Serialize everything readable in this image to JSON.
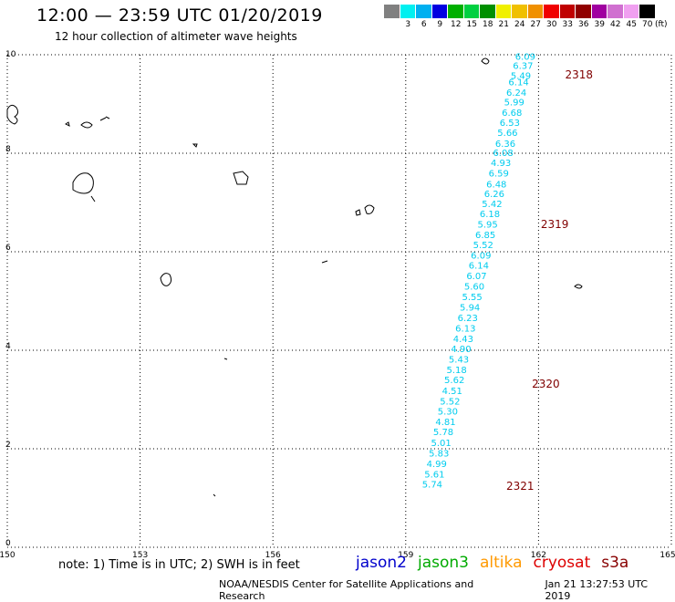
{
  "header": {
    "title": "12:00 — 23:59 UTC 01/20/2019",
    "subtitle": "12 hour collection of altimeter wave heights"
  },
  "legend": {
    "unit": "(ft)",
    "colors": [
      "#808080",
      "#00f0f0",
      "#00b0f0",
      "#0000e0",
      "#00b000",
      "#00d040",
      "#009000",
      "#f0f000",
      "#f0c000",
      "#f09000",
      "#f00000",
      "#c00000",
      "#900000",
      "#a000a0",
      "#d070d0",
      "#f0a0f0",
      "#000000"
    ],
    "labels": [
      "3",
      "6",
      "9",
      "12",
      "15",
      "18",
      "21",
      "24",
      "27",
      "30",
      "33",
      "36",
      "39",
      "42",
      "45",
      "70"
    ]
  },
  "map": {
    "lon_ticks": [
      "150",
      "153",
      "156",
      "159",
      "162",
      "165"
    ],
    "lat_ticks": [
      "0",
      "2",
      "4",
      "6",
      "8",
      "10"
    ],
    "lon_range": [
      150,
      165
    ],
    "lat_range": [
      0,
      10
    ],
    "track_color": "#00ccee",
    "orbit_color": "#800000",
    "swh": [
      {
        "lon": 161.7,
        "lat": 9.9,
        "v": "6.09"
      },
      {
        "lon": 161.65,
        "lat": 9.71,
        "v": "6.37"
      },
      {
        "lon": 161.6,
        "lat": 9.51,
        "v": "5.49"
      },
      {
        "lon": 161.55,
        "lat": 9.38,
        "v": "6.14"
      },
      {
        "lon": 161.5,
        "lat": 9.17,
        "v": "6.24"
      },
      {
        "lon": 161.45,
        "lat": 8.97,
        "v": "5.99"
      },
      {
        "lon": 161.4,
        "lat": 8.76,
        "v": "6.68"
      },
      {
        "lon": 161.35,
        "lat": 8.56,
        "v": "6.53"
      },
      {
        "lon": 161.3,
        "lat": 8.35,
        "v": "5.66"
      },
      {
        "lon": 161.25,
        "lat": 8.13,
        "v": "6.36"
      },
      {
        "lon": 161.2,
        "lat": 7.94,
        "v": "6.08"
      },
      {
        "lon": 161.15,
        "lat": 7.74,
        "v": "4.93"
      },
      {
        "lon": 161.1,
        "lat": 7.53,
        "v": "6.59"
      },
      {
        "lon": 161.05,
        "lat": 7.31,
        "v": "6.48"
      },
      {
        "lon": 161.0,
        "lat": 7.11,
        "v": "6.26"
      },
      {
        "lon": 160.95,
        "lat": 6.91,
        "v": "5.42"
      },
      {
        "lon": 160.9,
        "lat": 6.7,
        "v": "6.18"
      },
      {
        "lon": 160.85,
        "lat": 6.49,
        "v": "5.95"
      },
      {
        "lon": 160.8,
        "lat": 6.28,
        "v": "6.85"
      },
      {
        "lon": 160.75,
        "lat": 6.07,
        "v": "5.52"
      },
      {
        "lon": 160.7,
        "lat": 5.86,
        "v": "6.09"
      },
      {
        "lon": 160.65,
        "lat": 5.66,
        "v": "6.14"
      },
      {
        "lon": 160.6,
        "lat": 5.44,
        "v": "6.07"
      },
      {
        "lon": 160.55,
        "lat": 5.23,
        "v": "5.60"
      },
      {
        "lon": 160.5,
        "lat": 5.02,
        "v": "5.55"
      },
      {
        "lon": 160.45,
        "lat": 4.81,
        "v": "5.94"
      },
      {
        "lon": 160.4,
        "lat": 4.59,
        "v": "6.23"
      },
      {
        "lon": 160.35,
        "lat": 4.38,
        "v": "6.13"
      },
      {
        "lon": 160.3,
        "lat": 4.17,
        "v": "4.43"
      },
      {
        "lon": 160.25,
        "lat": 3.96,
        "v": "4.90"
      },
      {
        "lon": 160.2,
        "lat": 3.75,
        "v": "5.43"
      },
      {
        "lon": 160.15,
        "lat": 3.54,
        "v": "5.18"
      },
      {
        "lon": 160.1,
        "lat": 3.33,
        "v": "5.62"
      },
      {
        "lon": 160.05,
        "lat": 3.11,
        "v": "4.51"
      },
      {
        "lon": 160.0,
        "lat": 2.9,
        "v": "5.52"
      },
      {
        "lon": 159.95,
        "lat": 2.69,
        "v": "5.30"
      },
      {
        "lon": 159.9,
        "lat": 2.48,
        "v": "4.81"
      },
      {
        "lon": 159.85,
        "lat": 2.28,
        "v": "5.78"
      },
      {
        "lon": 159.8,
        "lat": 2.06,
        "v": "5.01"
      },
      {
        "lon": 159.75,
        "lat": 1.84,
        "v": "5.83"
      },
      {
        "lon": 159.7,
        "lat": 1.63,
        "v": "4.99"
      },
      {
        "lon": 159.65,
        "lat": 1.42,
        "v": "5.61"
      },
      {
        "lon": 159.6,
        "lat": 1.21,
        "v": "5.74"
      }
    ],
    "orbits": [
      {
        "lon": 162.6,
        "lat": 9.52,
        "v": "2318"
      },
      {
        "lon": 162.05,
        "lat": 6.48,
        "v": "2319"
      },
      {
        "lon": 161.85,
        "lat": 3.24,
        "v": "2320"
      },
      {
        "lon": 161.27,
        "lat": 1.17,
        "v": "2321"
      }
    ]
  },
  "note": "note: 1) Time is in UTC; 2) SWH is in feet",
  "satellites": [
    {
      "name": "jason2",
      "color": "#0000cc"
    },
    {
      "name": "jason3",
      "color": "#00aa00"
    },
    {
      "name": "altika",
      "color": "#ff9900"
    },
    {
      "name": "cryosat",
      "color": "#dd0000"
    },
    {
      "name": "s3a",
      "color": "#880000"
    }
  ],
  "footer": {
    "credit": "NOAA/NESDIS Center for Satellite Applications and Research",
    "timestamp": "Jan 21 13:27:53 UTC 2019"
  }
}
